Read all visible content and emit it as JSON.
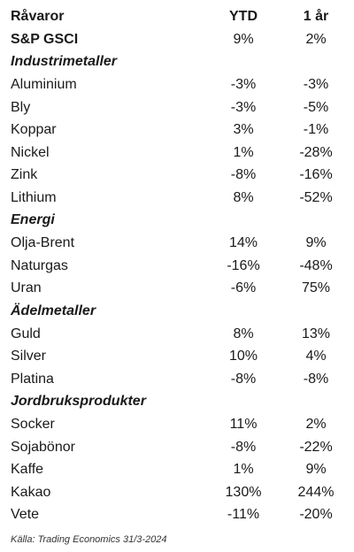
{
  "header": {
    "name": "Råvaror",
    "ytd": "YTD",
    "year": "1 år"
  },
  "rows": [
    {
      "type": "bold",
      "name": "S&P GSCI",
      "ytd": "9%",
      "year": "2%"
    },
    {
      "type": "section",
      "name": "Industrimetaller"
    },
    {
      "type": "item",
      "name": "Aluminium",
      "ytd": "-3%",
      "year": "-3%"
    },
    {
      "type": "item",
      "name": "Bly",
      "ytd": "-3%",
      "year": "-5%"
    },
    {
      "type": "item",
      "name": "Koppar",
      "ytd": "3%",
      "year": "-1%"
    },
    {
      "type": "item",
      "name": "Nickel",
      "ytd": "1%",
      "year": "-28%"
    },
    {
      "type": "item",
      "name": "Zink",
      "ytd": "-8%",
      "year": "-16%"
    },
    {
      "type": "item",
      "name": "Lithium",
      "ytd": "8%",
      "year": "-52%"
    },
    {
      "type": "section",
      "name": "Energi"
    },
    {
      "type": "item",
      "name": "Olja-Brent",
      "ytd": "14%",
      "year": "9%"
    },
    {
      "type": "item",
      "name": "Naturgas",
      "ytd": "-16%",
      "year": "-48%"
    },
    {
      "type": "item",
      "name": "Uran",
      "ytd": "-6%",
      "year": "75%"
    },
    {
      "type": "section",
      "name": "Ädelmetaller"
    },
    {
      "type": "item",
      "name": "Guld",
      "ytd": "8%",
      "year": "13%"
    },
    {
      "type": "item",
      "name": "Silver",
      "ytd": "10%",
      "year": "4%"
    },
    {
      "type": "item",
      "name": "Platina",
      "ytd": "-8%",
      "year": "-8%"
    },
    {
      "type": "section",
      "name": "Jordbruksprodukter"
    },
    {
      "type": "item",
      "name": "Socker",
      "ytd": "11%",
      "year": "2%"
    },
    {
      "type": "item",
      "name": "Sojabönor",
      "ytd": "-8%",
      "year": "-22%"
    },
    {
      "type": "item",
      "name": "Kaffe",
      "ytd": "1%",
      "year": "9%"
    },
    {
      "type": "item",
      "name": "Kakao",
      "ytd": "130%",
      "year": "244%"
    },
    {
      "type": "item",
      "name": "Vete",
      "ytd": "-11%",
      "year": "-20%"
    }
  ],
  "source": "Källa: Trading Economics 31/3-2024"
}
